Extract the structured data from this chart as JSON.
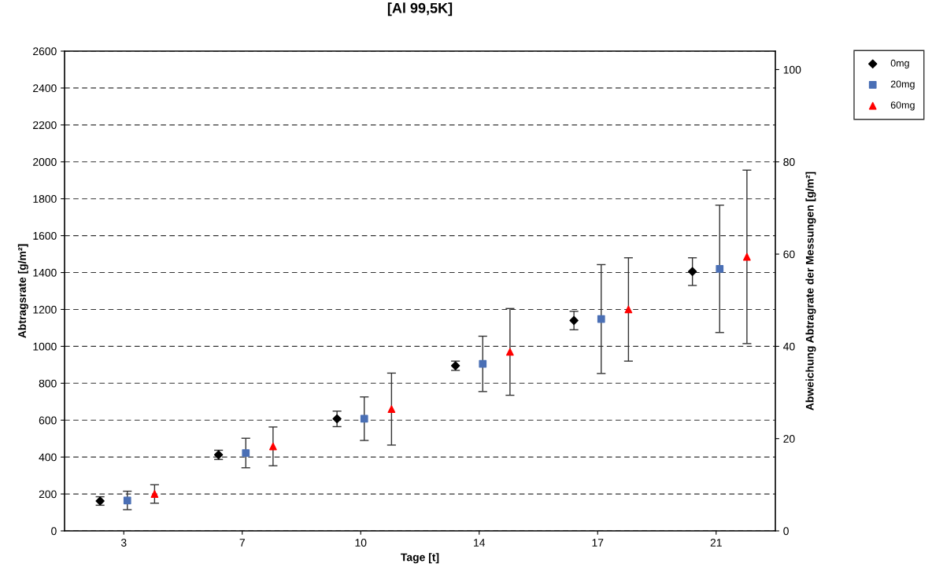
{
  "chart_data": {
    "type": "scatter",
    "title": "[Al 99,5K]",
    "xlabel": "Tage [t]",
    "ylabel": "Abtragsrate [g/m²]",
    "y2label": "Abweichung Abtragrate der Messungen [g/m²]",
    "categories": [
      "3",
      "7",
      "10",
      "14",
      "17",
      "21"
    ],
    "series": [
      {
        "name": "0mg",
        "color": "#000000",
        "marker": "diamond",
        "values": [
          162,
          412,
          607,
          895,
          1140,
          1405
        ],
        "errors": [
          23,
          25,
          42,
          25,
          50,
          75
        ]
      },
      {
        "name": "20mg",
        "color": "#4a6fb5",
        "marker": "square",
        "values": [
          165,
          422,
          608,
          905,
          1148,
          1420
        ],
        "errors": [
          50,
          80,
          118,
          150,
          295,
          345
        ]
      },
      {
        "name": "60mg",
        "color": "#ff0000",
        "marker": "triangle",
        "values": [
          200,
          458,
          660,
          970,
          1200,
          1485
        ],
        "errors": [
          50,
          105,
          195,
          235,
          280,
          470
        ]
      }
    ],
    "ylim": [
      0,
      2600
    ],
    "yticks": [
      0,
      200,
      400,
      600,
      800,
      1000,
      1200,
      1400,
      1600,
      1800,
      2000,
      2200,
      2400,
      2600
    ],
    "y2lim": [
      0,
      104
    ],
    "y2ticks": [
      0,
      20,
      40,
      60,
      80,
      100
    ],
    "grid": "y",
    "legend": "top right"
  }
}
